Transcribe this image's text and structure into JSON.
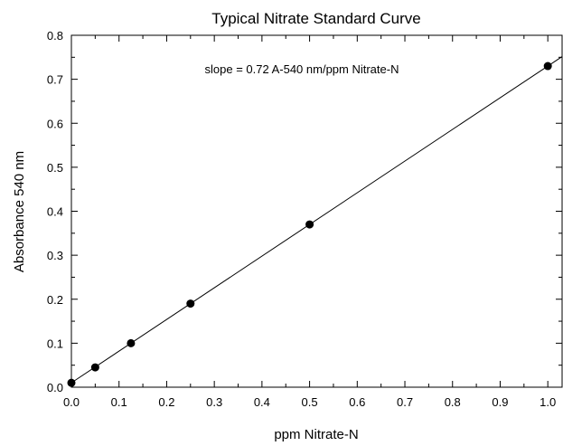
{
  "chart_data": {
    "type": "scatter",
    "title": "Typical Nitrate Standard Curve",
    "xlabel": "ppm Nitrate-N",
    "ylabel": "Absorbance 540 nm",
    "annotation": "slope = 0.72 A-540 nm/ppm Nitrate-N",
    "xlim": [
      0.0,
      1.03
    ],
    "ylim": [
      0.0,
      0.8
    ],
    "x_ticks": [
      "0.0",
      "0.1",
      "0.2",
      "0.3",
      "0.4",
      "0.5",
      "0.6",
      "0.7",
      "0.8",
      "0.9",
      "1.0"
    ],
    "y_ticks": [
      "0.0",
      "0.1",
      "0.2",
      "0.3",
      "0.4",
      "0.5",
      "0.6",
      "0.7",
      "0.8"
    ],
    "grid": false,
    "series": [
      {
        "points": [
          {
            "x": 0.0,
            "y": 0.01
          },
          {
            "x": 0.05,
            "y": 0.045
          },
          {
            "x": 0.125,
            "y": 0.1
          },
          {
            "x": 0.25,
            "y": 0.19
          },
          {
            "x": 0.5,
            "y": 0.37
          },
          {
            "x": 1.0,
            "y": 0.73
          }
        ]
      }
    ],
    "fit_line": {
      "slope": 0.72,
      "intercept": 0.01,
      "x_range": [
        0.0,
        1.03
      ]
    }
  }
}
